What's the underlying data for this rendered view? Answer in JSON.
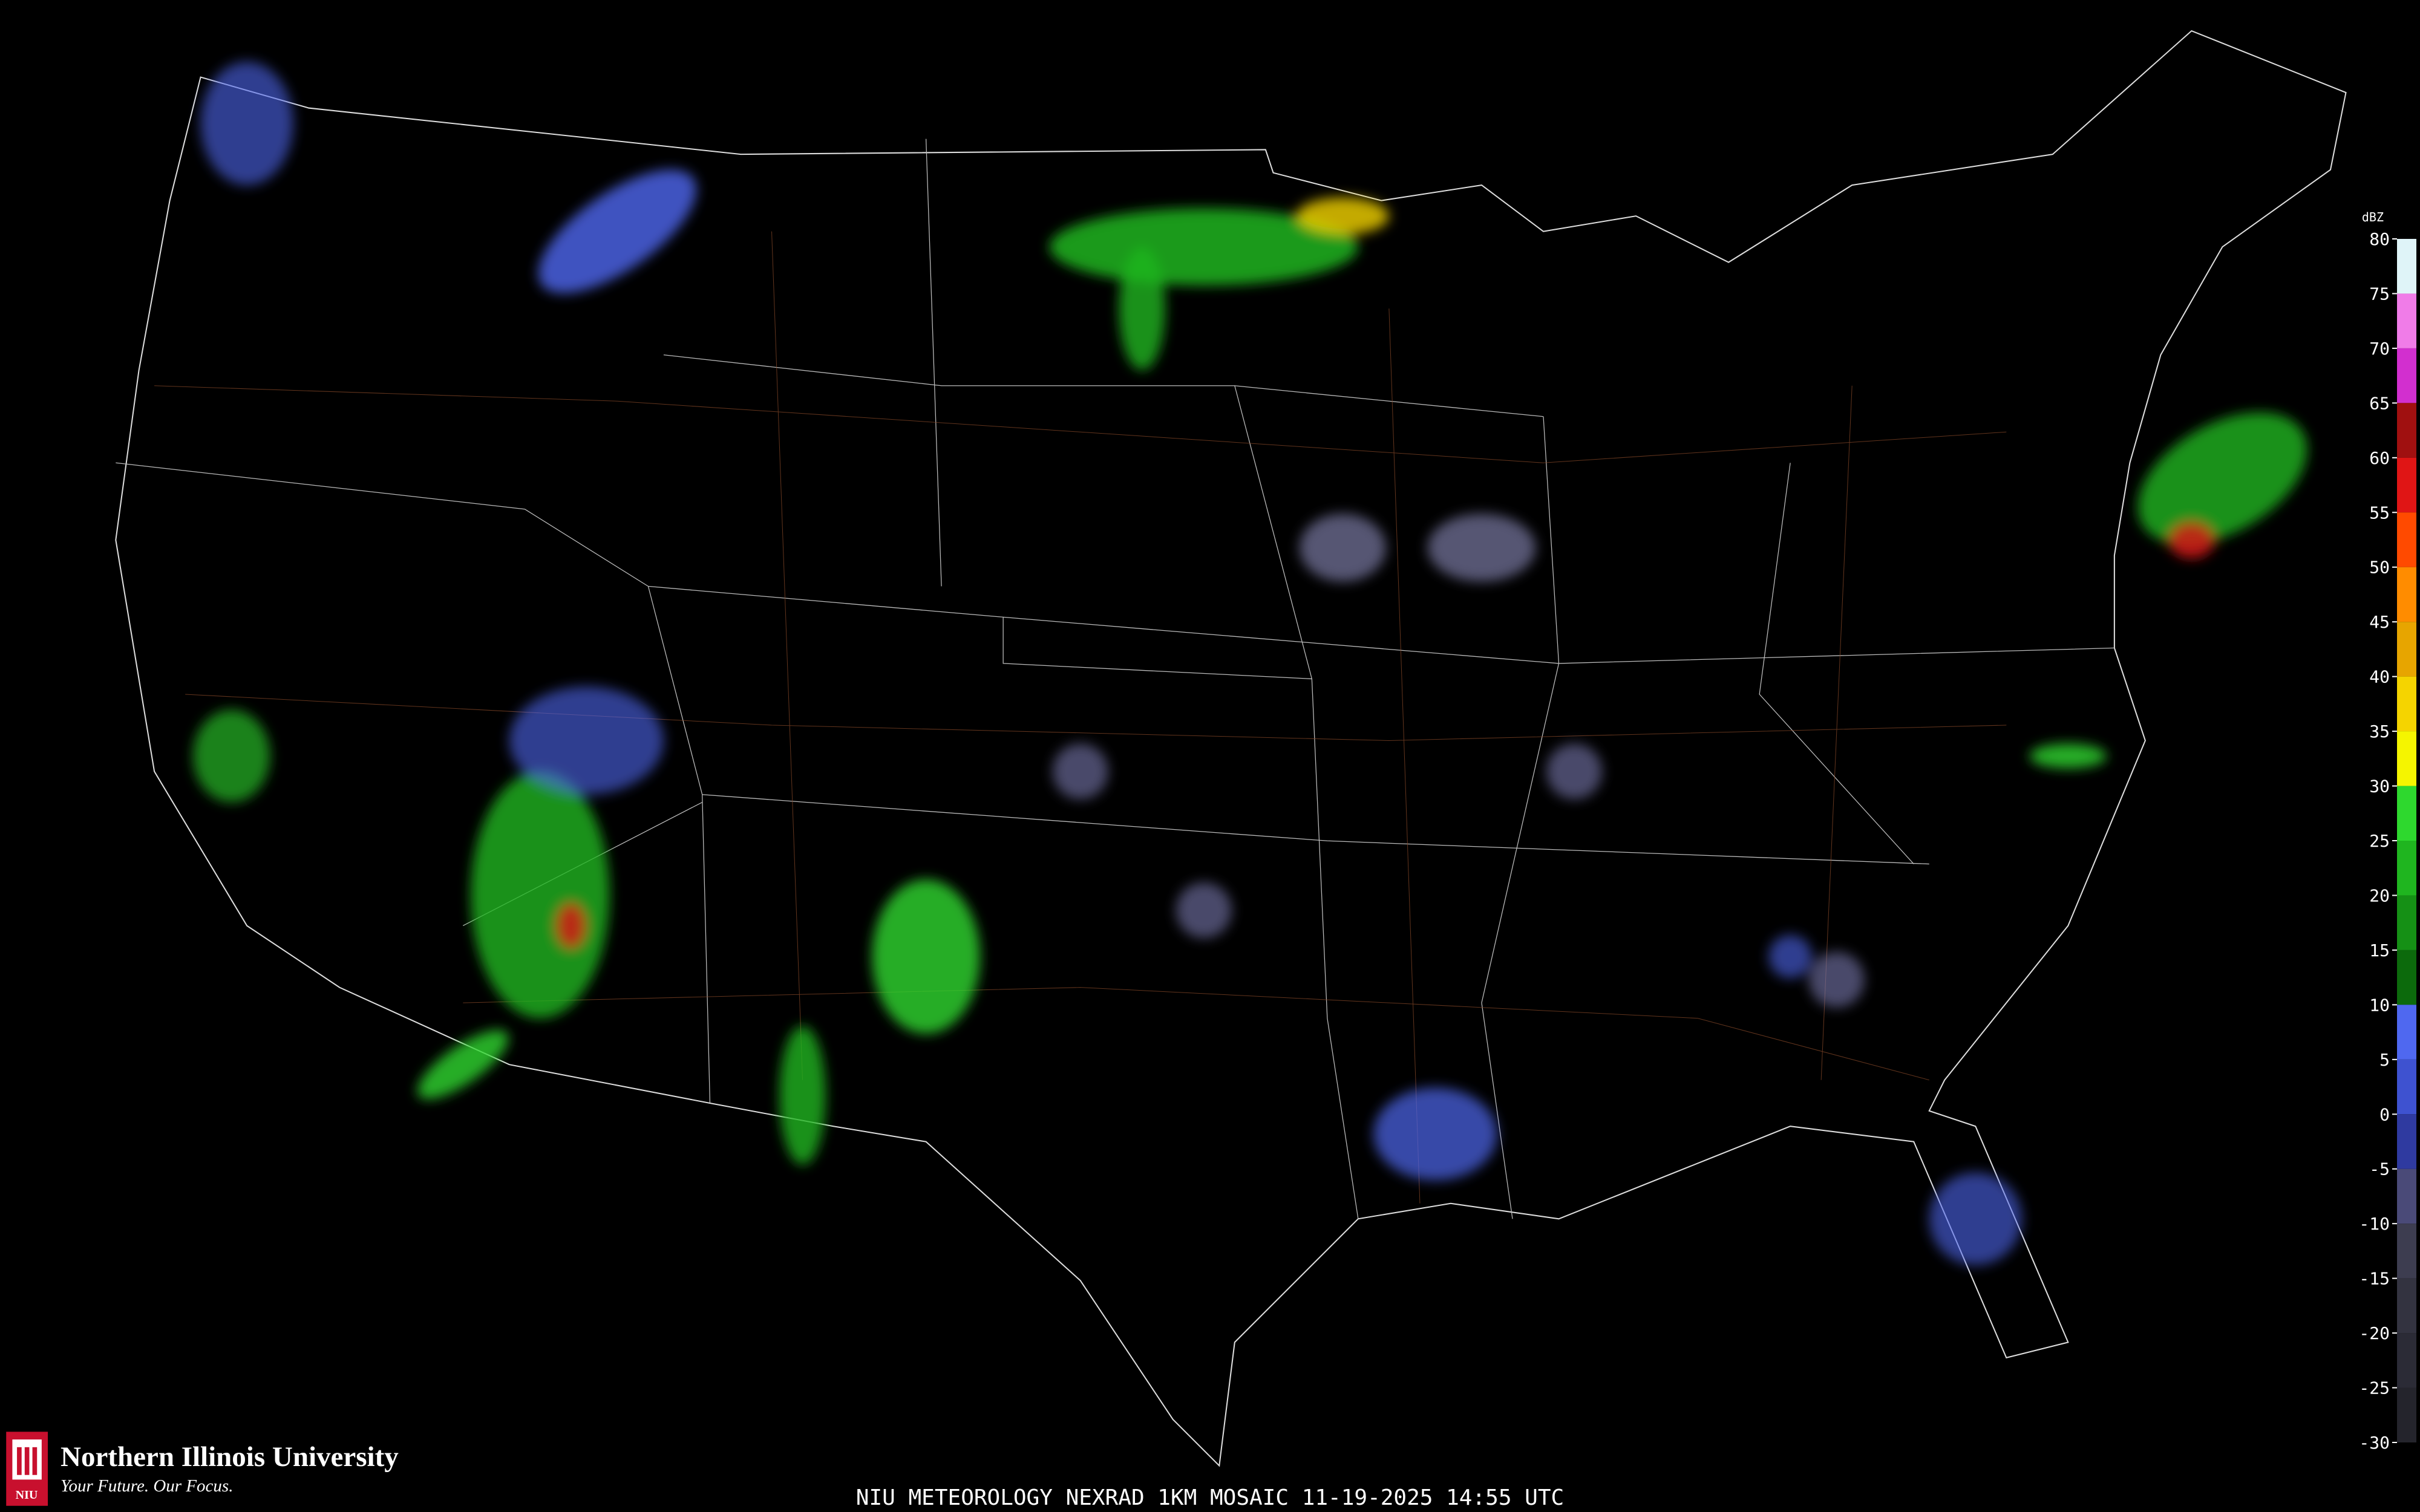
{
  "map": {
    "caption": "NIU METEOROLOGY NEXRAD 1KM MOSAIC  11-19-2025 14:55 UTC",
    "logo": {
      "badge": "NIU",
      "name": "Northern Illinois University",
      "tagline": "Your Future. Our Focus."
    },
    "legend": {
      "unit": "dBZ",
      "ticks": [
        80,
        75,
        70,
        65,
        60,
        55,
        50,
        45,
        40,
        35,
        30,
        25,
        20,
        15,
        10,
        5,
        0,
        -5,
        -10,
        -15,
        -20,
        -25,
        -30
      ],
      "colors": [
        "#dff4f8",
        "#f07ce8",
        "#d22fcf",
        "#a01010",
        "#e01515",
        "#ff4a00",
        "#ff8c00",
        "#e7a500",
        "#f5d400",
        "#f5f500",
        "#2ed82e",
        "#1fb51f",
        "#159015",
        "#0c6a0c",
        "#4f68f0",
        "#3e52d0",
        "#2f3aa0",
        "#4a4a78",
        "#3d3d50",
        "#333340",
        "#2b2b36",
        "#24242c"
      ]
    }
  }
}
